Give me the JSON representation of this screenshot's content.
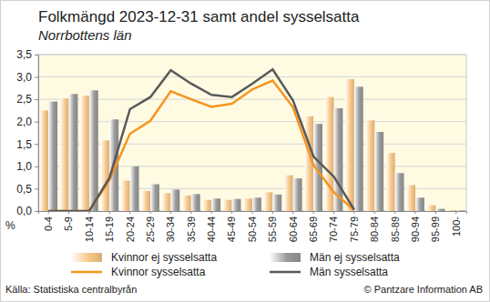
{
  "chart_data": {
    "type": "bar",
    "title": "Folkmängd 2023-12-31 samt andel sysselsatta",
    "subtitle": "Norrbottens län",
    "y_label": "%",
    "source": "Källa: Statistiska centralbyrån",
    "credit": "© Pantzare Information AB",
    "categories": [
      "0-4",
      "5-9",
      "10-14",
      "15-19",
      "20-24",
      "25-29",
      "30-34",
      "35-39",
      "40-44",
      "45-49",
      "50-54",
      "55-59",
      "60-64",
      "65-69",
      "70-74",
      "75-79",
      "80-84",
      "85-89",
      "90-94",
      "95-99",
      "100-"
    ],
    "series": [
      {
        "name": "Kvinnor ej sysselsatta",
        "type": "bar",
        "color": "#f9c98a",
        "values": [
          2.25,
          2.52,
          2.58,
          1.58,
          0.68,
          0.45,
          0.4,
          0.35,
          0.25,
          0.25,
          0.28,
          0.42,
          0.8,
          2.12,
          2.55,
          2.95,
          2.03,
          1.3,
          0.58,
          0.13,
          0.02
        ]
      },
      {
        "name": "Män ej sysselsatta",
        "type": "bar",
        "color": "#9a9a9a",
        "values": [
          2.45,
          2.62,
          2.7,
          2.05,
          1.0,
          0.6,
          0.48,
          0.38,
          0.28,
          0.27,
          0.3,
          0.37,
          0.73,
          1.95,
          2.3,
          2.78,
          1.77,
          0.85,
          0.3,
          0.05,
          0.01
        ]
      },
      {
        "name": "Kvinnor sysselsatta",
        "type": "line",
        "color": "#f7941d",
        "values": [
          0,
          0,
          0,
          0.7,
          1.73,
          2.02,
          2.68,
          2.5,
          2.33,
          2.4,
          2.72,
          2.92,
          2.32,
          1.03,
          0.42,
          0.02,
          null,
          null,
          null,
          null,
          null
        ]
      },
      {
        "name": "Män sysselsatta",
        "type": "line",
        "color": "#595959",
        "values": [
          0,
          0,
          0,
          0.75,
          2.28,
          2.55,
          3.15,
          2.85,
          2.6,
          2.55,
          2.85,
          3.17,
          2.47,
          1.22,
          0.77,
          0.03,
          null,
          null,
          null,
          null,
          null
        ]
      }
    ],
    "ylim": [
      0,
      3.5
    ],
    "yticks": [
      {
        "value": 0,
        "label": "0,0"
      },
      {
        "value": 0.5,
        "label": "0,5"
      },
      {
        "value": 1,
        "label": "1,0"
      },
      {
        "value": 1.5,
        "label": "1,5"
      },
      {
        "value": 2,
        "label": "2,0"
      },
      {
        "value": 2.5,
        "label": "2,5"
      },
      {
        "value": 3,
        "label": "3,0"
      },
      {
        "value": 3.5,
        "label": "3,5"
      }
    ],
    "grid": true,
    "legend": "bottom"
  }
}
